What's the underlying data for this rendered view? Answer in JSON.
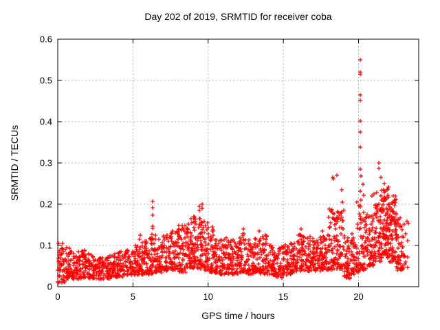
{
  "chart_data": {
    "type": "scatter",
    "title": "Day 202 of 2019, SRMTID for receiver coba",
    "xlabel": "GPS time / hours",
    "ylabel": "SRMTID / TECUs",
    "xlim": [
      0,
      24
    ],
    "ylim": [
      0,
      0.6
    ],
    "xticks": [
      {
        "v": 0,
        "label": "0"
      },
      {
        "v": 5,
        "label": "5"
      },
      {
        "v": 10,
        "label": "10"
      },
      {
        "v": 15,
        "label": "15"
      },
      {
        "v": 20,
        "label": "20"
      }
    ],
    "yticks": [
      {
        "v": 0.0,
        "label": "0"
      },
      {
        "v": 0.1,
        "label": "0.1"
      },
      {
        "v": 0.2,
        "label": "0.2"
      },
      {
        "v": 0.3,
        "label": "0.3"
      },
      {
        "v": 0.4,
        "label": "0.4"
      },
      {
        "v": 0.5,
        "label": "0.5"
      },
      {
        "v": 0.6,
        "label": "0.6"
      }
    ],
    "grid": true,
    "legend": "none",
    "marker": "+",
    "marker_color": "#ff0000",
    "background_color": "#ffffff",
    "axis_color": "#000000",
    "grid_color": "#b0b0b0",
    "peak_points": [
      [
        0.3,
        0.105
      ],
      [
        5.45,
        0.115
      ],
      [
        5.47,
        0.125
      ],
      [
        6.3,
        0.207
      ],
      [
        6.3,
        0.192
      ],
      [
        6.31,
        0.173
      ],
      [
        6.32,
        0.147
      ],
      [
        6.33,
        0.142
      ],
      [
        6.3,
        0.117
      ],
      [
        8.85,
        0.165
      ],
      [
        8.9,
        0.155
      ],
      [
        9.4,
        0.195
      ],
      [
        9.42,
        0.185
      ],
      [
        9.45,
        0.165
      ],
      [
        9.58,
        0.155
      ],
      [
        9.6,
        0.2
      ],
      [
        9.62,
        0.19
      ],
      [
        10.3,
        0.145
      ],
      [
        12.35,
        0.14
      ],
      [
        13.4,
        0.135
      ],
      [
        16.2,
        0.14
      ],
      [
        17.6,
        0.135
      ],
      [
        18.3,
        0.265
      ],
      [
        18.33,
        0.262
      ],
      [
        18.55,
        0.27
      ],
      [
        18.9,
        0.235
      ],
      [
        18.92,
        0.205
      ],
      [
        19.9,
        0.205
      ],
      [
        20.1,
        0.55
      ],
      [
        20.1,
        0.52
      ],
      [
        20.13,
        0.515
      ],
      [
        20.1,
        0.465
      ],
      [
        20.12,
        0.452
      ],
      [
        20.1,
        0.402
      ],
      [
        20.11,
        0.375
      ],
      [
        20.1,
        0.338
      ],
      [
        20.12,
        0.285
      ],
      [
        20.14,
        0.268
      ],
      [
        20.1,
        0.232
      ],
      [
        20.15,
        0.21
      ],
      [
        20.3,
        0.248
      ],
      [
        20.32,
        0.222
      ],
      [
        20.9,
        0.22
      ],
      [
        21.35,
        0.3
      ],
      [
        21.37,
        0.286
      ],
      [
        21.5,
        0.265
      ],
      [
        21.7,
        0.25
      ],
      [
        22.0,
        0.242
      ],
      [
        22.3,
        0.22
      ]
    ],
    "density_segments": [
      [
        0.0,
        0.5,
        45,
        0.01,
        0.105,
        1.5
      ],
      [
        0.5,
        1.0,
        45,
        0.02,
        0.095,
        1.5
      ],
      [
        1.0,
        1.5,
        45,
        0.018,
        0.085,
        1.4
      ],
      [
        1.5,
        2.0,
        45,
        0.02,
        0.09,
        1.5
      ],
      [
        2.0,
        2.5,
        45,
        0.02,
        0.08,
        1.4
      ],
      [
        2.5,
        3.0,
        45,
        0.018,
        0.072,
        1.3
      ],
      [
        3.0,
        3.5,
        45,
        0.02,
        0.08,
        1.4
      ],
      [
        3.5,
        4.0,
        45,
        0.022,
        0.082,
        1.4
      ],
      [
        4.0,
        4.5,
        45,
        0.022,
        0.085,
        1.4
      ],
      [
        4.5,
        5.0,
        45,
        0.028,
        0.09,
        1.4
      ],
      [
        5.0,
        5.5,
        48,
        0.028,
        0.1,
        1.5
      ],
      [
        5.5,
        6.0,
        48,
        0.03,
        0.11,
        1.5
      ],
      [
        6.0,
        6.5,
        50,
        0.03,
        0.13,
        1.6
      ],
      [
        6.5,
        7.0,
        48,
        0.035,
        0.115,
        1.5
      ],
      [
        7.0,
        7.5,
        48,
        0.038,
        0.125,
        1.5
      ],
      [
        7.5,
        8.0,
        50,
        0.04,
        0.14,
        1.5
      ],
      [
        8.0,
        8.5,
        52,
        0.035,
        0.15,
        1.5
      ],
      [
        8.5,
        9.0,
        55,
        0.045,
        0.16,
        1.4
      ],
      [
        9.0,
        9.5,
        55,
        0.045,
        0.175,
        1.4
      ],
      [
        9.5,
        10.0,
        55,
        0.04,
        0.16,
        1.5
      ],
      [
        10.0,
        10.5,
        50,
        0.035,
        0.14,
        1.5
      ],
      [
        10.5,
        11.0,
        48,
        0.03,
        0.115,
        1.5
      ],
      [
        11.0,
        11.5,
        48,
        0.03,
        0.12,
        1.5
      ],
      [
        11.5,
        12.0,
        48,
        0.03,
        0.115,
        1.5
      ],
      [
        12.0,
        12.5,
        50,
        0.035,
        0.13,
        1.5
      ],
      [
        12.5,
        13.0,
        48,
        0.03,
        0.115,
        1.5
      ],
      [
        13.0,
        13.5,
        48,
        0.035,
        0.12,
        1.5
      ],
      [
        13.5,
        14.0,
        48,
        0.03,
        0.125,
        1.5
      ],
      [
        14.0,
        14.5,
        46,
        0.028,
        0.105,
        1.5
      ],
      [
        14.5,
        15.0,
        45,
        0.022,
        0.1,
        1.5
      ],
      [
        15.0,
        15.5,
        46,
        0.028,
        0.105,
        1.5
      ],
      [
        15.5,
        16.0,
        48,
        0.035,
        0.115,
        1.5
      ],
      [
        16.0,
        16.5,
        50,
        0.038,
        0.13,
        1.5
      ],
      [
        16.5,
        17.0,
        50,
        0.038,
        0.125,
        1.5
      ],
      [
        17.0,
        17.5,
        48,
        0.038,
        0.12,
        1.5
      ],
      [
        17.5,
        18.0,
        50,
        0.04,
        0.13,
        1.5
      ],
      [
        18.0,
        18.5,
        55,
        0.04,
        0.19,
        1.7
      ],
      [
        18.5,
        19.0,
        55,
        0.04,
        0.185,
        1.7
      ],
      [
        19.0,
        19.5,
        48,
        0.02,
        0.125,
        1.5
      ],
      [
        19.5,
        20.0,
        50,
        0.03,
        0.16,
        1.6
      ],
      [
        20.0,
        20.5,
        55,
        0.04,
        0.2,
        1.6
      ],
      [
        20.5,
        21.0,
        55,
        0.05,
        0.18,
        1.5
      ],
      [
        21.0,
        21.5,
        65,
        0.06,
        0.23,
        1.3
      ],
      [
        21.5,
        22.0,
        85,
        0.07,
        0.24,
        1.2
      ],
      [
        22.0,
        22.5,
        80,
        0.06,
        0.22,
        1.2
      ],
      [
        22.5,
        23.0,
        55,
        0.04,
        0.17,
        1.3
      ],
      [
        23.0,
        23.3,
        12,
        0.04,
        0.16,
        1.3
      ]
    ]
  }
}
